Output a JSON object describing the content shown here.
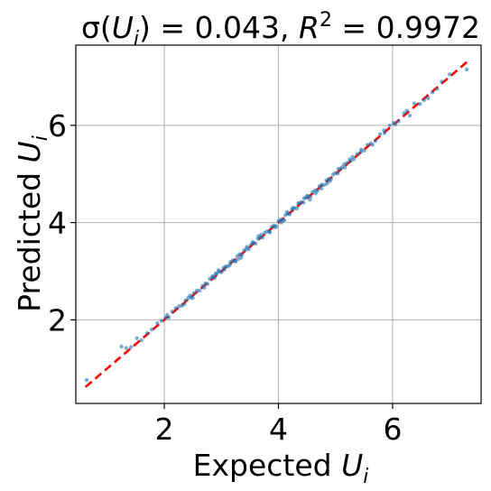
{
  "chart_data": {
    "type": "scatter",
    "title": "σ(U_i) = 0.043, R^2 = 0.9972",
    "title_parts": {
      "sigma": "σ(",
      "u": "U",
      "sub_i": "i",
      "eq1": ") = 0.043, ",
      "r": "R",
      "sup2": "2",
      "eq2": " = 0.9972"
    },
    "xlabel_parts": {
      "text": "Expected ",
      "u": "U",
      "sub_i": "i"
    },
    "ylabel_parts": {
      "text": "Predicted ",
      "u": "U",
      "sub_i": "i"
    },
    "xlim": [
      0.45,
      7.55
    ],
    "ylim": [
      0.28,
      7.65
    ],
    "xticks": [
      2,
      4,
      6
    ],
    "xtick_labels": [
      "2",
      "4",
      "6"
    ],
    "yticks": [
      2,
      4,
      6
    ],
    "ytick_labels": [
      "2",
      "4",
      "6"
    ],
    "grid": true,
    "point_color": "#1f77b4",
    "reference_line": {
      "x": [
        0.62,
        7.35
      ],
      "y": [
        0.62,
        7.35
      ],
      "color": "#ff0000",
      "style": "dashed"
    },
    "points": [
      [
        0.64,
        0.76
      ],
      [
        1.25,
        1.45
      ],
      [
        1.33,
        1.42
      ],
      [
        1.42,
        1.44
      ],
      [
        1.52,
        1.62
      ],
      [
        1.6,
        1.58
      ],
      [
        1.7,
        1.72
      ],
      [
        1.78,
        1.8
      ],
      [
        1.88,
        1.93
      ],
      [
        1.95,
        1.98
      ],
      [
        2.02,
        2.04
      ],
      [
        2.08,
        2.05
      ],
      [
        2.14,
        2.17
      ],
      [
        2.2,
        2.24
      ],
      [
        2.26,
        2.28
      ],
      [
        2.31,
        2.29
      ],
      [
        2.37,
        2.4
      ],
      [
        2.42,
        2.45
      ],
      [
        2.47,
        2.46
      ],
      [
        2.52,
        2.55
      ],
      [
        2.57,
        2.6
      ],
      [
        2.62,
        2.6
      ],
      [
        2.67,
        2.7
      ],
      [
        2.72,
        2.75
      ],
      [
        2.76,
        2.74
      ],
      [
        2.8,
        2.84
      ],
      [
        2.84,
        2.88
      ],
      [
        2.88,
        2.86
      ],
      [
        2.92,
        2.95
      ],
      [
        2.96,
        2.99
      ],
      [
        3.0,
        2.98
      ],
      [
        3.04,
        3.07
      ],
      [
        3.08,
        3.1
      ],
      [
        3.12,
        3.1
      ],
      [
        3.16,
        3.19
      ],
      [
        3.2,
        3.22
      ],
      [
        3.24,
        3.21
      ],
      [
        3.28,
        3.31
      ],
      [
        3.32,
        3.35
      ],
      [
        3.36,
        3.34
      ],
      [
        3.4,
        3.43
      ],
      [
        3.44,
        3.46
      ],
      [
        3.48,
        3.45
      ],
      [
        3.52,
        3.55
      ],
      [
        3.56,
        3.58
      ],
      [
        3.6,
        3.57
      ],
      [
        3.64,
        3.67
      ],
      [
        3.68,
        3.7
      ],
      [
        3.72,
        3.69
      ],
      [
        3.76,
        3.79
      ],
      [
        3.8,
        3.82
      ],
      [
        3.84,
        3.81
      ],
      [
        3.88,
        3.91
      ],
      [
        3.92,
        3.94
      ],
      [
        3.96,
        3.93
      ],
      [
        4.0,
        4.03
      ],
      [
        4.04,
        4.06
      ],
      [
        4.08,
        4.05
      ],
      [
        4.12,
        4.15
      ],
      [
        4.16,
        4.18
      ],
      [
        4.2,
        4.17
      ],
      [
        4.24,
        4.27
      ],
      [
        4.28,
        4.3
      ],
      [
        4.32,
        4.29
      ],
      [
        4.36,
        4.39
      ],
      [
        4.4,
        4.42
      ],
      [
        4.44,
        4.41
      ],
      [
        4.48,
        4.51
      ],
      [
        4.52,
        4.54
      ],
      [
        4.56,
        4.53
      ],
      [
        4.6,
        4.63
      ],
      [
        4.64,
        4.66
      ],
      [
        4.68,
        4.65
      ],
      [
        4.72,
        4.75
      ],
      [
        4.76,
        4.78
      ],
      [
        4.8,
        4.77
      ],
      [
        4.84,
        4.87
      ],
      [
        4.88,
        4.9
      ],
      [
        4.92,
        4.89
      ],
      [
        4.96,
        4.99
      ],
      [
        5.0,
        5.02
      ],
      [
        5.04,
        5.01
      ],
      [
        5.08,
        5.11
      ],
      [
        5.12,
        5.14
      ],
      [
        5.16,
        5.13
      ],
      [
        5.2,
        5.23
      ],
      [
        5.26,
        5.27
      ],
      [
        5.32,
        5.3
      ],
      [
        5.38,
        5.41
      ],
      [
        5.44,
        5.45
      ],
      [
        5.5,
        5.48
      ],
      [
        5.56,
        5.6
      ],
      [
        5.62,
        5.63
      ],
      [
        5.7,
        5.68
      ],
      [
        5.78,
        5.82
      ],
      [
        5.86,
        5.84
      ],
      [
        5.95,
        6.0
      ],
      [
        6.02,
        6.05
      ],
      [
        6.1,
        6.08
      ],
      [
        6.2,
        6.25
      ],
      [
        6.3,
        6.2
      ],
      [
        6.38,
        6.45
      ],
      [
        6.48,
        6.44
      ],
      [
        6.55,
        6.52
      ],
      [
        6.62,
        6.56
      ],
      [
        6.7,
        6.68
      ],
      [
        6.78,
        6.75
      ],
      [
        6.86,
        6.9
      ],
      [
        7.0,
        7.05
      ],
      [
        7.3,
        7.15
      ],
      [
        2.05,
        2.1
      ],
      [
        2.5,
        2.45
      ],
      [
        2.9,
        2.95
      ],
      [
        3.3,
        3.25
      ],
      [
        3.7,
        3.75
      ],
      [
        4.1,
        4.05
      ],
      [
        4.5,
        4.55
      ],
      [
        4.9,
        4.85
      ],
      [
        5.3,
        5.35
      ],
      [
        3.15,
        3.13
      ],
      [
        3.55,
        3.6
      ],
      [
        3.95,
        3.9
      ],
      [
        4.35,
        4.4
      ],
      [
        4.75,
        4.7
      ],
      [
        5.15,
        5.2
      ],
      [
        2.7,
        2.66
      ],
      [
        3.05,
        3.03
      ],
      [
        3.45,
        3.5
      ],
      [
        3.85,
        3.8
      ],
      [
        4.25,
        4.3
      ],
      [
        4.65,
        4.6
      ],
      [
        5.05,
        5.1
      ],
      [
        2.35,
        2.32
      ],
      [
        2.85,
        2.9
      ],
      [
        3.25,
        3.2
      ],
      [
        3.65,
        3.72
      ],
      [
        4.05,
        4.0
      ],
      [
        4.45,
        4.5
      ],
      [
        4.85,
        4.8
      ],
      [
        5.25,
        5.3
      ],
      [
        4.55,
        4.47
      ],
      [
        4.15,
        4.22
      ],
      [
        3.35,
        3.28
      ],
      [
        2.95,
        3.02
      ],
      [
        2.45,
        2.5
      ],
      [
        5.45,
        5.5
      ],
      [
        5.65,
        5.6
      ],
      [
        5.85,
        5.9
      ],
      [
        6.05,
        6.02
      ],
      [
        6.25,
        6.3
      ]
    ]
  }
}
